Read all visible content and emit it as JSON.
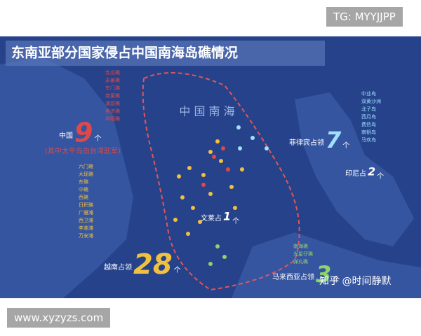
{
  "watermarks": {
    "top": "TG: MYYJJPP",
    "bottom": "www.xyzyzs.com",
    "zhihu": "知乎 @时间静默"
  },
  "header": {
    "title": "东南亚部分国家侵占中国南海岛礁情况"
  },
  "sea_label": "中 国 南 海",
  "groups": [
    {
      "label": "中国",
      "count": 9,
      "unit": "个",
      "note": "(其中太平岛由台湾驻军)"
    },
    {
      "label": "越南占领",
      "count": 28,
      "unit": "个"
    },
    {
      "label": "菲律宾占领",
      "count": 7,
      "unit": "个"
    },
    {
      "label": "马来西亚占领",
      "count": 3,
      "unit": "个"
    },
    {
      "label": "文莱占",
      "count": 1,
      "unit": "个"
    },
    {
      "label": "印尼占",
      "count": 2,
      "unit": "个"
    }
  ],
  "lists": {
    "china": [
      "赤瓜礁",
      "永暑礁",
      "东门礁",
      "南薰礁",
      "渚碧礁",
      "美济礁",
      "华阳礁"
    ],
    "vietnam": [
      "六门礁",
      "大现礁",
      "东礁",
      "中礁",
      "西礁",
      "日积礁",
      "广雅滩",
      "西卫滩",
      "李准滩",
      "万安滩"
    ],
    "philippines": [
      "中业岛",
      "双黄沙洲",
      "北子岛",
      "西月岛",
      "费信岛",
      "南钥岛",
      "马欢岛"
    ],
    "malaysia": [
      "南海礁",
      "光星仔礁",
      "弹丸礁"
    ]
  }
}
